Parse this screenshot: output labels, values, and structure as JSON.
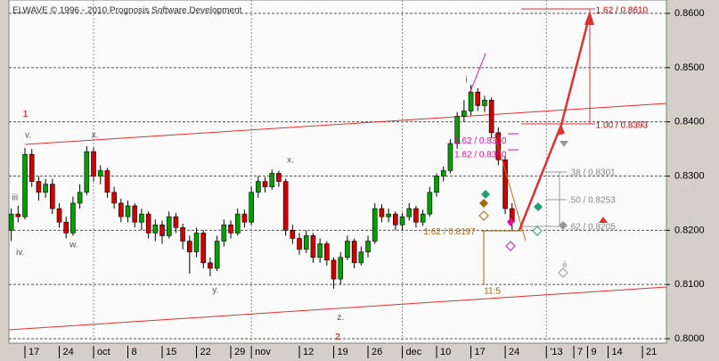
{
  "chart_data": {
    "type": "candlestick",
    "title": "ELWAVE © 1996 - 2010 Prognosis Software Development",
    "x": [
      -2,
      -1,
      0,
      1,
      2,
      3,
      4,
      5,
      6,
      7,
      8,
      9,
      10,
      11,
      12,
      13,
      14,
      15,
      16,
      17,
      18,
      19,
      20,
      21,
      22,
      23,
      24,
      25,
      26,
      27,
      28,
      29,
      30,
      31,
      32,
      33,
      34,
      35,
      36,
      37,
      38,
      39,
      40,
      41,
      42,
      43,
      44,
      45,
      46,
      47,
      48,
      49,
      50,
      51,
      52,
      53,
      54,
      55,
      56,
      57,
      58,
      59,
      60,
      61,
      62,
      63,
      64,
      65,
      66,
      67,
      68,
      69,
      70,
      71
    ],
    "open": [
      0.82,
      0.823,
      0.8225,
      0.834,
      0.829,
      0.827,
      0.8285,
      0.824,
      0.8215,
      0.8195,
      0.825,
      0.827,
      0.8345,
      0.83,
      0.831,
      0.827,
      0.825,
      0.8225,
      0.8245,
      0.8215,
      0.823,
      0.8195,
      0.821,
      0.819,
      0.8225,
      0.8205,
      0.818,
      0.816,
      0.8195,
      0.814,
      0.813,
      0.818,
      0.821,
      0.8195,
      0.823,
      0.8215,
      0.827,
      0.829,
      0.828,
      0.8305,
      0.829,
      0.82,
      0.8185,
      0.8165,
      0.819,
      0.815,
      0.8175,
      0.8145,
      0.811,
      0.815,
      0.818,
      0.814,
      0.816,
      0.818,
      0.824,
      0.8225,
      0.823,
      0.821,
      0.8225,
      0.824,
      0.8215,
      0.823,
      0.827,
      0.83,
      0.831,
      0.836,
      0.841,
      0.842,
      0.8455,
      0.843,
      0.844,
      0.838,
      0.833,
      0.824
    ],
    "high": [
      0.824,
      0.8245,
      0.8352,
      0.835,
      0.83,
      0.8295,
      0.8295,
      0.825,
      0.8225,
      0.8262,
      0.8285,
      0.8355,
      0.8352,
      0.832,
      0.8315,
      0.828,
      0.8258,
      0.8255,
      0.825,
      0.824,
      0.8235,
      0.822,
      0.8218,
      0.8235,
      0.8232,
      0.8212,
      0.819,
      0.8205,
      0.82,
      0.815,
      0.819,
      0.822,
      0.8218,
      0.824,
      0.8238,
      0.828,
      0.83,
      0.8298,
      0.8312,
      0.831,
      0.8295,
      0.821,
      0.8195,
      0.82,
      0.8195,
      0.8185,
      0.818,
      0.815,
      0.816,
      0.819,
      0.8185,
      0.817,
      0.819,
      0.825,
      0.8248,
      0.824,
      0.8235,
      0.8232,
      0.825,
      0.8245,
      0.8238,
      0.828,
      0.8305,
      0.8318,
      0.8368,
      0.8418,
      0.844,
      0.8468,
      0.8462,
      0.8448,
      0.8445,
      0.839,
      0.8338,
      0.825
    ],
    "low": [
      0.818,
      0.8215,
      0.822,
      0.828,
      0.8255,
      0.826,
      0.823,
      0.8205,
      0.8185,
      0.819,
      0.824,
      0.8265,
      0.829,
      0.8285,
      0.826,
      0.824,
      0.8215,
      0.8215,
      0.8205,
      0.82,
      0.8185,
      0.818,
      0.8175,
      0.8185,
      0.8195,
      0.8165,
      0.812,
      0.815,
      0.813,
      0.8115,
      0.8125,
      0.817,
      0.8185,
      0.819,
      0.8205,
      0.821,
      0.826,
      0.827,
      0.8275,
      0.828,
      0.819,
      0.8175,
      0.8155,
      0.8158,
      0.814,
      0.814,
      0.8135,
      0.8092,
      0.81,
      0.8145,
      0.813,
      0.8135,
      0.815,
      0.8175,
      0.8215,
      0.8215,
      0.82,
      0.82,
      0.8218,
      0.8205,
      0.8208,
      0.8225,
      0.8262,
      0.829,
      0.8305,
      0.835,
      0.84,
      0.8412,
      0.842,
      0.8418,
      0.837,
      0.832,
      0.823,
      0.82
    ],
    "close": [
      0.823,
      0.8225,
      0.834,
      0.829,
      0.827,
      0.8285,
      0.824,
      0.8215,
      0.8195,
      0.825,
      0.827,
      0.8345,
      0.83,
      0.831,
      0.827,
      0.825,
      0.8225,
      0.8245,
      0.8215,
      0.823,
      0.8195,
      0.821,
      0.819,
      0.8225,
      0.8205,
      0.818,
      0.816,
      0.8195,
      0.814,
      0.813,
      0.818,
      0.821,
      0.8195,
      0.823,
      0.8215,
      0.827,
      0.829,
      0.828,
      0.8305,
      0.829,
      0.82,
      0.8185,
      0.8165,
      0.819,
      0.815,
      0.8175,
      0.8145,
      0.811,
      0.815,
      0.818,
      0.814,
      0.816,
      0.818,
      0.824,
      0.8225,
      0.823,
      0.821,
      0.8225,
      0.824,
      0.8215,
      0.823,
      0.827,
      0.83,
      0.831,
      0.836,
      0.841,
      0.842,
      0.8455,
      0.843,
      0.844,
      0.838,
      0.833,
      0.824,
      0.8215
    ],
    "up_color": "#00a000",
    "down_color": "#d00000",
    "xlim": [
      -2.34,
      93.5
    ],
    "ylim": [
      0.79918,
      0.86247
    ],
    "xticks": [
      {
        "value": 0,
        "label": "17"
      },
      {
        "value": 5,
        "label": "24"
      },
      {
        "value": 10,
        "label": "oct"
      },
      {
        "value": 15,
        "label": "8"
      },
      {
        "value": 20,
        "label": "15"
      },
      {
        "value": 25,
        "label": "22"
      },
      {
        "value": 30,
        "label": "29"
      },
      {
        "value": 33,
        "label": "nov"
      },
      {
        "value": 40,
        "label": "12"
      },
      {
        "value": 45,
        "label": "19"
      },
      {
        "value": 50,
        "label": "26"
      },
      {
        "value": 55,
        "label": "dec"
      },
      {
        "value": 60,
        "label": "10"
      },
      {
        "value": 65,
        "label": "17"
      },
      {
        "value": 70,
        "label": "24"
      },
      {
        "value": 76,
        "label": "'13"
      },
      {
        "value": 80,
        "label": "7"
      },
      {
        "value": 82,
        "label": "9"
      },
      {
        "value": 85,
        "label": "14"
      },
      {
        "value": 90,
        "label": "21"
      }
    ],
    "yticks": [
      {
        "value": 0.8,
        "label": "0.8000"
      },
      {
        "value": 0.81,
        "label": "0.8100"
      },
      {
        "value": 0.82,
        "label": "0.8200"
      },
      {
        "value": 0.83,
        "label": "0.8300"
      },
      {
        "value": 0.84,
        "label": "0.8400"
      },
      {
        "value": 0.85,
        "label": "0.8500"
      },
      {
        "value": 0.86,
        "label": "0.8600"
      }
    ],
    "grid": true,
    "annotations": [
      {
        "text": "1",
        "x": -0.3,
        "y": 0.8414,
        "color": "#d00000"
      },
      {
        "text": "v.",
        "x": 0,
        "y": 0.8375,
        "color": "#555555"
      },
      {
        "text": "iii",
        "x": -1.9,
        "y": 0.826,
        "color": "#555555"
      },
      {
        "text": "iv.",
        "x": -1.3,
        "y": 0.8159,
        "color": "#555555"
      },
      {
        "text": "w.",
        "x": 6.5,
        "y": 0.8173,
        "color": "#555555"
      },
      {
        "text": "x.",
        "x": 9.7,
        "y": 0.8375,
        "color": "#555555"
      },
      {
        "text": "y.",
        "x": 27.3,
        "y": 0.8089,
        "color": "#555555"
      },
      {
        "text": "x.",
        "x": 38.2,
        "y": 0.8329,
        "color": "#555555"
      },
      {
        "text": "z.",
        "x": 45.5,
        "y": 0.8039,
        "color": "#555555"
      },
      {
        "text": "2",
        "x": 45.2,
        "y": 0.8003,
        "color": "#d00000"
      },
      {
        "text": "i",
        "x": 64.2,
        "y": 0.8477,
        "color": "#555555"
      },
      {
        "text": "ii",
        "x": 78.4,
        "y": 0.8136,
        "color": "#888888"
      },
      {
        "text": "11:5",
        "x": 66.9,
        "y": 0.8087,
        "color": "#a06a10"
      },
      {
        "text": "1.62 / 0.8320",
        "x": 62.6,
        "y": 0.8364,
        "color": "#e0109a"
      },
      {
        "text": "1.62 / 0.8300",
        "x": 62.6,
        "y": 0.8339,
        "color": "#e0109a"
      },
      {
        "text": "1.62 / 0.8197",
        "x": 58.1,
        "y": 0.8197,
        "color": "#a06a10"
      },
      {
        "text": ".38 / 0.8301",
        "x": 79.2,
        "y": 0.8306,
        "color": "#888888"
      },
      {
        "text": ".50 / 0.8253",
        "x": 79.2,
        "y": 0.8255,
        "color": "#888888"
      },
      {
        "text": ".62 / 0.8205",
        "x": 79.2,
        "y": 0.8206,
        "color": "#888888"
      },
      {
        "text": "1.00 / 0.8393",
        "x": 83.2,
        "y": 0.8393,
        "color": "#d00000"
      },
      {
        "text": "1.62 / 0.8610",
        "x": 83.2,
        "y": 0.8605,
        "color": "#d00000"
      }
    ]
  }
}
